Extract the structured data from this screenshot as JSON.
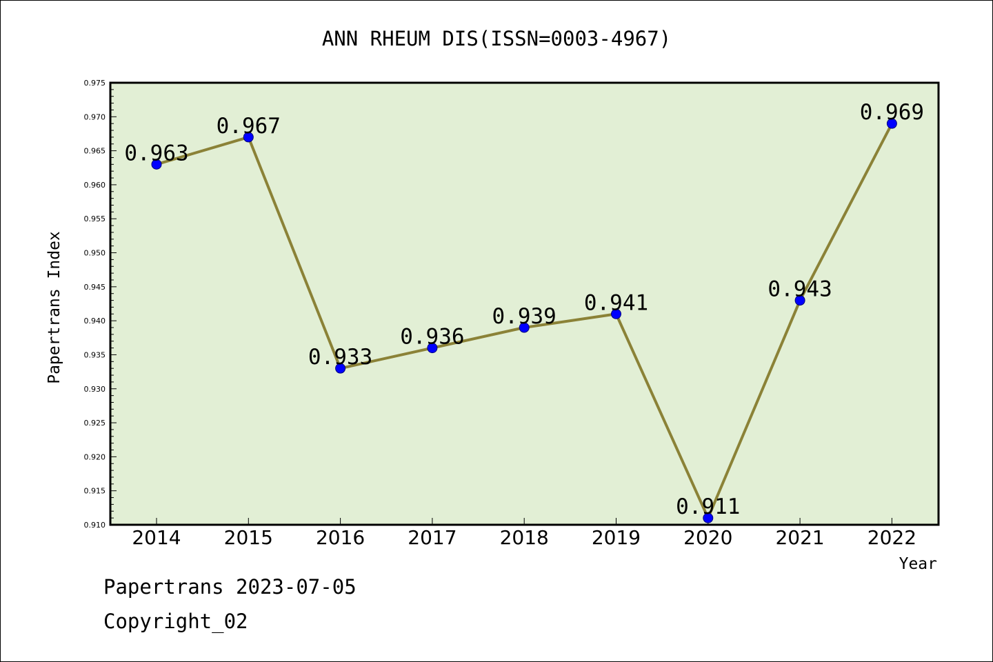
{
  "chart_data": {
    "type": "line",
    "title": "ANN RHEUM DIS(ISSN=0003-4967)",
    "xlabel": "Year",
    "ylabel": "Papertrans Index",
    "categories": [
      "2014",
      "2015",
      "2016",
      "2017",
      "2018",
      "2019",
      "2020",
      "2021",
      "2022"
    ],
    "series": [
      {
        "values": [
          0.963,
          0.967,
          0.933,
          0.936,
          0.939,
          0.941,
          0.911,
          0.943,
          0.969
        ],
        "labels": [
          "0.963",
          "0.967",
          "0.933",
          "0.936",
          "0.939",
          "0.941",
          "0.911",
          "0.943",
          "0.969"
        ]
      }
    ],
    "ylim": [
      0.91,
      0.975
    ],
    "yticks": [
      "0.910",
      "0.915",
      "0.920",
      "0.925",
      "0.930",
      "0.935",
      "0.940",
      "0.945",
      "0.950",
      "0.955",
      "0.960",
      "0.965",
      "0.970",
      "0.975"
    ],
    "grid": false,
    "colors": {
      "plot_background": "#e2efd5",
      "line": "#8b8237",
      "marker": "#0000ff"
    }
  },
  "footer": {
    "date_line": "Papertrans 2023-07-05",
    "copyright_line": "Copyright_02"
  }
}
